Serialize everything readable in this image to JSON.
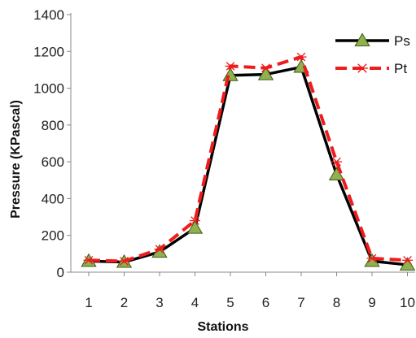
{
  "chart_data": {
    "type": "line",
    "title": "",
    "xlabel": "Stations",
    "ylabel": "Pressure (KPascal)",
    "x": [
      1,
      2,
      3,
      4,
      5,
      6,
      7,
      8,
      9,
      10
    ],
    "ylim": [
      0,
      1400
    ],
    "yticks": [
      0,
      200,
      400,
      600,
      800,
      1000,
      1200,
      1400
    ],
    "grid": false,
    "legend_position": "top-right",
    "series": [
      {
        "name": "Ps",
        "values": [
          60,
          55,
          110,
          240,
          1070,
          1075,
          1115,
          530,
          60,
          40
        ],
        "color": "#000000",
        "marker": "triangle",
        "marker_color": "#8fb14f",
        "dash": "solid"
      },
      {
        "name": "Pt",
        "values": [
          65,
          60,
          125,
          280,
          1120,
          1110,
          1170,
          600,
          75,
          65
        ],
        "color": "#ee1c1c",
        "marker": "star",
        "marker_color": "#ee1c1c",
        "dash": "dashed"
      }
    ]
  }
}
